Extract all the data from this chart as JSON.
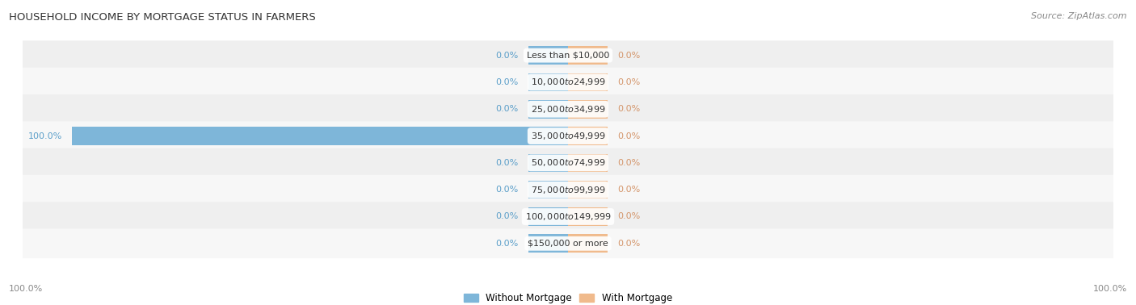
{
  "title": "HOUSEHOLD INCOME BY MORTGAGE STATUS IN FARMERS",
  "source": "Source: ZipAtlas.com",
  "categories": [
    "Less than $10,000",
    "$10,000 to $24,999",
    "$25,000 to $34,999",
    "$35,000 to $49,999",
    "$50,000 to $74,999",
    "$75,000 to $99,999",
    "$100,000 to $149,999",
    "$150,000 or more"
  ],
  "without_mortgage": [
    0.0,
    0.0,
    0.0,
    100.0,
    0.0,
    0.0,
    0.0,
    0.0
  ],
  "with_mortgage": [
    0.0,
    0.0,
    0.0,
    0.0,
    0.0,
    0.0,
    0.0,
    0.0
  ],
  "color_without": "#7EB6D9",
  "color_with": "#F0BA8C",
  "label_color_without": "#5A9EC9",
  "label_color_with": "#D4956A",
  "axis_label_color": "#888888",
  "title_color": "#333333",
  "source_color": "#888888",
  "legend_label_without": "Without Mortgage",
  "legend_label_with": "With Mortgage",
  "bottom_left_label": "100.0%",
  "bottom_right_label": "100.0%",
  "stub_size": 8,
  "full_bar_size": 100
}
